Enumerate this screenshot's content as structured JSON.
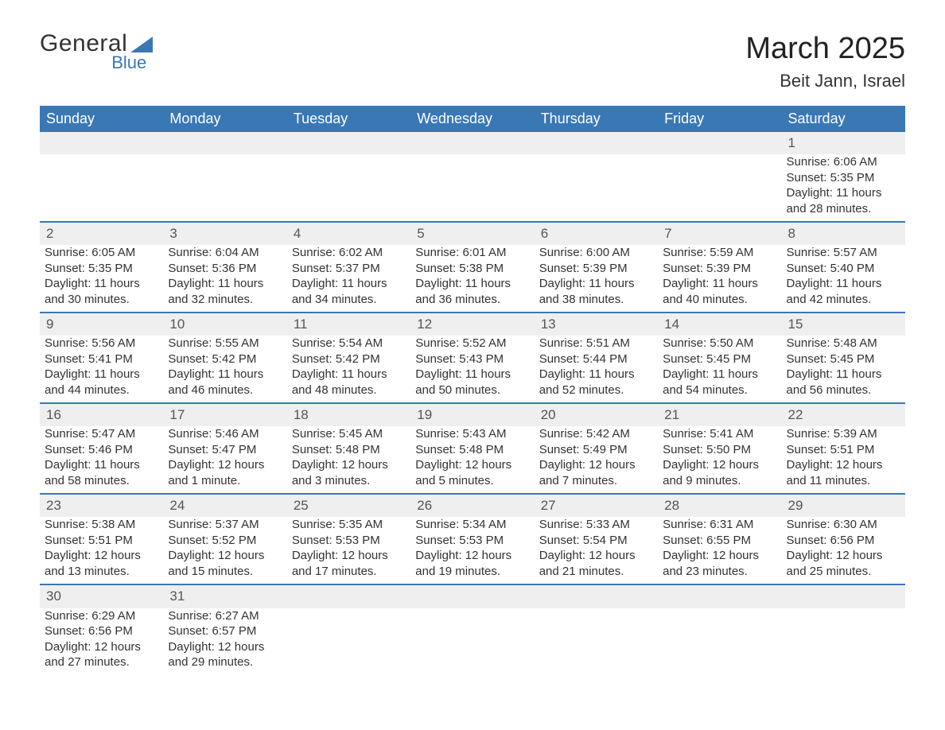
{
  "logo": {
    "word1": "General",
    "word2": "Blue",
    "accent_color": "#3a78b5",
    "text_color": "#333333"
  },
  "title": "March 2025",
  "location": "Beit Jann, Israel",
  "colors": {
    "header_bg": "#3a78b5",
    "header_text": "#ffffff",
    "row_divider": "#3a78b5",
    "daynum_bg": "#efefef",
    "body_text": "#333333",
    "page_bg": "#ffffff"
  },
  "typography": {
    "title_fontsize": 38,
    "location_fontsize": 22,
    "header_fontsize": 18,
    "cell_fontsize": 15,
    "daynum_fontsize": 17
  },
  "weekdays": [
    "Sunday",
    "Monday",
    "Tuesday",
    "Wednesday",
    "Thursday",
    "Friday",
    "Saturday"
  ],
  "weeks": [
    [
      null,
      null,
      null,
      null,
      null,
      null,
      {
        "day": 1,
        "sunrise": "6:06 AM",
        "sunset": "5:35 PM",
        "daylight": "11 hours and 28 minutes."
      }
    ],
    [
      {
        "day": 2,
        "sunrise": "6:05 AM",
        "sunset": "5:35 PM",
        "daylight": "11 hours and 30 minutes."
      },
      {
        "day": 3,
        "sunrise": "6:04 AM",
        "sunset": "5:36 PM",
        "daylight": "11 hours and 32 minutes."
      },
      {
        "day": 4,
        "sunrise": "6:02 AM",
        "sunset": "5:37 PM",
        "daylight": "11 hours and 34 minutes."
      },
      {
        "day": 5,
        "sunrise": "6:01 AM",
        "sunset": "5:38 PM",
        "daylight": "11 hours and 36 minutes."
      },
      {
        "day": 6,
        "sunrise": "6:00 AM",
        "sunset": "5:39 PM",
        "daylight": "11 hours and 38 minutes."
      },
      {
        "day": 7,
        "sunrise": "5:59 AM",
        "sunset": "5:39 PM",
        "daylight": "11 hours and 40 minutes."
      },
      {
        "day": 8,
        "sunrise": "5:57 AM",
        "sunset": "5:40 PM",
        "daylight": "11 hours and 42 minutes."
      }
    ],
    [
      {
        "day": 9,
        "sunrise": "5:56 AM",
        "sunset": "5:41 PM",
        "daylight": "11 hours and 44 minutes."
      },
      {
        "day": 10,
        "sunrise": "5:55 AM",
        "sunset": "5:42 PM",
        "daylight": "11 hours and 46 minutes."
      },
      {
        "day": 11,
        "sunrise": "5:54 AM",
        "sunset": "5:42 PM",
        "daylight": "11 hours and 48 minutes."
      },
      {
        "day": 12,
        "sunrise": "5:52 AM",
        "sunset": "5:43 PM",
        "daylight": "11 hours and 50 minutes."
      },
      {
        "day": 13,
        "sunrise": "5:51 AM",
        "sunset": "5:44 PM",
        "daylight": "11 hours and 52 minutes."
      },
      {
        "day": 14,
        "sunrise": "5:50 AM",
        "sunset": "5:45 PM",
        "daylight": "11 hours and 54 minutes."
      },
      {
        "day": 15,
        "sunrise": "5:48 AM",
        "sunset": "5:45 PM",
        "daylight": "11 hours and 56 minutes."
      }
    ],
    [
      {
        "day": 16,
        "sunrise": "5:47 AM",
        "sunset": "5:46 PM",
        "daylight": "11 hours and 58 minutes."
      },
      {
        "day": 17,
        "sunrise": "5:46 AM",
        "sunset": "5:47 PM",
        "daylight": "12 hours and 1 minute."
      },
      {
        "day": 18,
        "sunrise": "5:45 AM",
        "sunset": "5:48 PM",
        "daylight": "12 hours and 3 minutes."
      },
      {
        "day": 19,
        "sunrise": "5:43 AM",
        "sunset": "5:48 PM",
        "daylight": "12 hours and 5 minutes."
      },
      {
        "day": 20,
        "sunrise": "5:42 AM",
        "sunset": "5:49 PM",
        "daylight": "12 hours and 7 minutes."
      },
      {
        "day": 21,
        "sunrise": "5:41 AM",
        "sunset": "5:50 PM",
        "daylight": "12 hours and 9 minutes."
      },
      {
        "day": 22,
        "sunrise": "5:39 AM",
        "sunset": "5:51 PM",
        "daylight": "12 hours and 11 minutes."
      }
    ],
    [
      {
        "day": 23,
        "sunrise": "5:38 AM",
        "sunset": "5:51 PM",
        "daylight": "12 hours and 13 minutes."
      },
      {
        "day": 24,
        "sunrise": "5:37 AM",
        "sunset": "5:52 PM",
        "daylight": "12 hours and 15 minutes."
      },
      {
        "day": 25,
        "sunrise": "5:35 AM",
        "sunset": "5:53 PM",
        "daylight": "12 hours and 17 minutes."
      },
      {
        "day": 26,
        "sunrise": "5:34 AM",
        "sunset": "5:53 PM",
        "daylight": "12 hours and 19 minutes."
      },
      {
        "day": 27,
        "sunrise": "5:33 AM",
        "sunset": "5:54 PM",
        "daylight": "12 hours and 21 minutes."
      },
      {
        "day": 28,
        "sunrise": "6:31 AM",
        "sunset": "6:55 PM",
        "daylight": "12 hours and 23 minutes."
      },
      {
        "day": 29,
        "sunrise": "6:30 AM",
        "sunset": "6:56 PM",
        "daylight": "12 hours and 25 minutes."
      }
    ],
    [
      {
        "day": 30,
        "sunrise": "6:29 AM",
        "sunset": "6:56 PM",
        "daylight": "12 hours and 27 minutes."
      },
      {
        "day": 31,
        "sunrise": "6:27 AM",
        "sunset": "6:57 PM",
        "daylight": "12 hours and 29 minutes."
      },
      null,
      null,
      null,
      null,
      null
    ]
  ],
  "labels": {
    "sunrise": "Sunrise: ",
    "sunset": "Sunset: ",
    "daylight": "Daylight: "
  }
}
